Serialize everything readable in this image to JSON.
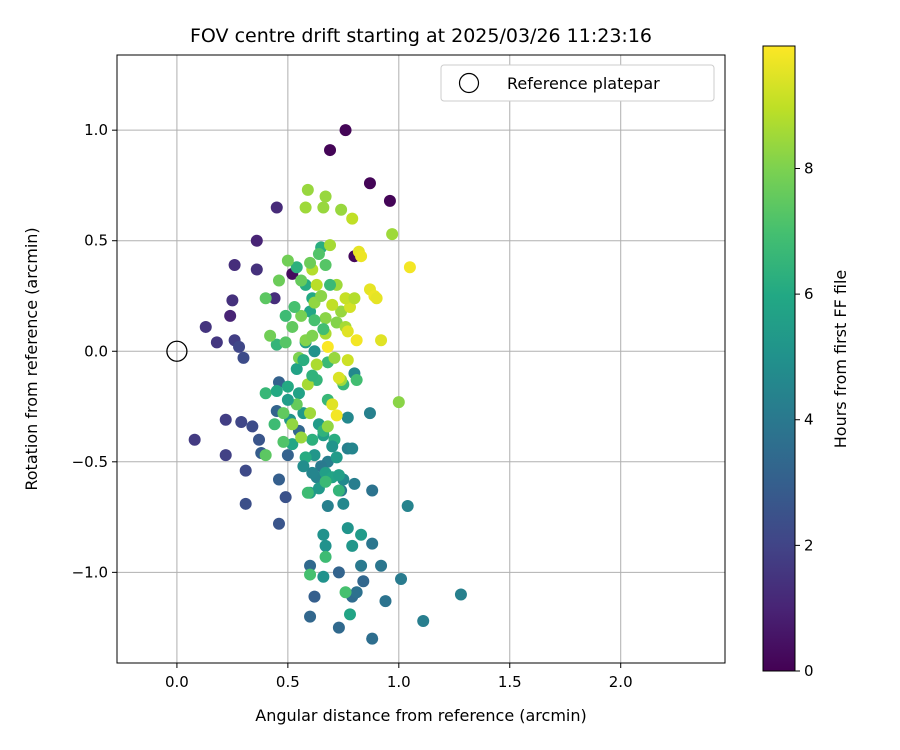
{
  "chart_data": {
    "type": "scatter",
    "title": "FOV centre drift starting at 2025/03/26 11:23:16",
    "xlabel": "Angular distance from reference (arcmin)",
    "ylabel": "Rotation from reference (arcmin)",
    "xlim": [
      -0.27,
      2.47
    ],
    "ylim": [
      -1.41,
      1.34
    ],
    "xticks": [
      0.0,
      0.5,
      1.0,
      1.5,
      2.0
    ],
    "yticks": [
      -1.0,
      -0.5,
      0.0,
      0.5,
      1.0
    ],
    "grid": true,
    "legend": {
      "position": "top-right",
      "entries": [
        "Reference platepar"
      ]
    },
    "reference_point": {
      "x": 0.0,
      "y": 0.0,
      "label": "Reference platepar"
    },
    "colorbar": {
      "label": "Hours from first FF file",
      "colormap": "viridis",
      "range": [
        0,
        9.95
      ],
      "ticks": [
        0,
        2,
        4,
        6,
        8
      ]
    },
    "points": [
      [
        0.76,
        1.0,
        0.1
      ],
      [
        0.69,
        0.91,
        0.1
      ],
      [
        0.87,
        0.76,
        0.1
      ],
      [
        0.96,
        0.68,
        0.1
      ],
      [
        0.8,
        0.43,
        0.2
      ],
      [
        0.52,
        0.35,
        0.3
      ],
      [
        0.36,
        0.5,
        1.0
      ],
      [
        0.45,
        0.65,
        1.2
      ],
      [
        0.26,
        0.39,
        1.3
      ],
      [
        0.36,
        0.37,
        1.4
      ],
      [
        0.44,
        0.24,
        1.3
      ],
      [
        0.25,
        0.23,
        1.4
      ],
      [
        0.24,
        0.16,
        1.0
      ],
      [
        0.13,
        0.11,
        1.5
      ],
      [
        0.18,
        0.04,
        1.6
      ],
      [
        0.26,
        0.05,
        1.8
      ],
      [
        0.28,
        0.02,
        2.1
      ],
      [
        0.3,
        -0.03,
        2.3
      ],
      [
        0.08,
        -0.4,
        1.7
      ],
      [
        0.22,
        -0.31,
        1.8
      ],
      [
        0.22,
        -0.47,
        1.9
      ],
      [
        0.29,
        -0.32,
        2.1
      ],
      [
        0.34,
        -0.34,
        2.3
      ],
      [
        0.31,
        -0.54,
        2.2
      ],
      [
        0.37,
        -0.4,
        2.6
      ],
      [
        0.38,
        -0.46,
        2.9
      ],
      [
        0.31,
        -0.69,
        2.4
      ],
      [
        0.46,
        -0.78,
        2.6
      ],
      [
        0.49,
        -0.66,
        2.5
      ],
      [
        0.46,
        -0.58,
        3.0
      ],
      [
        0.5,
        -0.47,
        3.1
      ],
      [
        0.46,
        -0.14,
        3.1
      ],
      [
        0.45,
        -0.27,
        3.2
      ],
      [
        0.55,
        -0.36,
        3.3
      ],
      [
        0.6,
        -0.97,
        3.4
      ],
      [
        0.62,
        -1.11,
        3.0
      ],
      [
        0.6,
        -1.2,
        3.3
      ],
      [
        0.73,
        -1.0,
        3.2
      ],
      [
        0.79,
        -1.11,
        3.5
      ],
      [
        0.81,
        -1.09,
        3.7
      ],
      [
        0.84,
        -1.04,
        3.3
      ],
      [
        0.73,
        -1.25,
        3.4
      ],
      [
        0.88,
        -1.3,
        3.6
      ],
      [
        0.94,
        -1.13,
        3.8
      ],
      [
        0.92,
        -0.97,
        3.9
      ],
      [
        0.83,
        -0.97,
        4.0
      ],
      [
        0.88,
        -0.87,
        3.9
      ],
      [
        1.01,
        -1.03,
        4.1
      ],
      [
        1.11,
        -1.22,
        4.2
      ],
      [
        1.28,
        -1.1,
        4.3
      ],
      [
        1.04,
        -0.7,
        4.4
      ],
      [
        0.88,
        -0.63,
        3.8
      ],
      [
        0.8,
        -0.6,
        4.2
      ],
      [
        0.87,
        -0.28,
        4.3
      ],
      [
        0.77,
        -0.44,
        4.3
      ],
      [
        0.79,
        -0.44,
        4.5
      ],
      [
        0.77,
        -0.3,
        4.6
      ],
      [
        0.8,
        -0.1,
        4.6
      ],
      [
        0.68,
        -0.5,
        4.2
      ],
      [
        0.65,
        -0.52,
        4.0
      ],
      [
        0.63,
        -0.57,
        4.4
      ],
      [
        0.68,
        -0.7,
        4.3
      ],
      [
        0.74,
        -0.63,
        4.1
      ],
      [
        0.61,
        -0.55,
        4.5
      ],
      [
        0.75,
        -0.58,
        4.7
      ],
      [
        0.67,
        -0.88,
        5.0
      ],
      [
        0.66,
        -0.83,
        5.0
      ],
      [
        0.66,
        -1.02,
        5.0
      ],
      [
        0.77,
        -0.8,
        5.1
      ],
      [
        0.79,
        -0.88,
        5.2
      ],
      [
        0.83,
        -0.83,
        5.4
      ],
      [
        0.78,
        -1.19,
        5.8
      ],
      [
        0.6,
        -0.64,
        5.5
      ],
      [
        0.64,
        -0.62,
        5.3
      ],
      [
        0.67,
        -0.55,
        5.6
      ],
      [
        0.7,
        -0.57,
        5.8
      ],
      [
        0.73,
        -0.56,
        5.6
      ],
      [
        0.72,
        -0.48,
        5.4
      ],
      [
        0.62,
        -0.47,
        5.2
      ],
      [
        0.64,
        -0.33,
        5.4
      ],
      [
        0.66,
        -0.38,
        5.6
      ],
      [
        0.57,
        -0.28,
        5.3
      ],
      [
        0.51,
        -0.31,
        5.1
      ],
      [
        0.55,
        -0.19,
        5.7
      ],
      [
        0.54,
        -0.08,
        5.7
      ],
      [
        0.58,
        0.04,
        5.6
      ],
      [
        0.6,
        0.18,
        5.9
      ],
      [
        0.61,
        0.24,
        6.0
      ],
      [
        0.65,
        0.47,
        6.2
      ],
      [
        0.58,
        0.3,
        6.1
      ],
      [
        0.54,
        0.38,
        6.3
      ],
      [
        0.5,
        -0.16,
        6.0
      ],
      [
        0.52,
        -0.42,
        5.9
      ],
      [
        0.58,
        -0.48,
        6.1
      ],
      [
        0.61,
        -0.4,
        6.3
      ],
      [
        0.66,
        -0.36,
        6.4
      ],
      [
        0.68,
        -0.22,
        6.6
      ],
      [
        0.63,
        -0.13,
        6.5
      ],
      [
        0.68,
        -0.05,
        6.7
      ],
      [
        0.75,
        -0.15,
        6.6
      ],
      [
        0.81,
        -0.13,
        6.9
      ],
      [
        0.73,
        -0.63,
        6.5
      ],
      [
        0.67,
        -0.59,
        6.7
      ],
      [
        0.59,
        -0.64,
        6.8
      ],
      [
        0.67,
        -0.93,
        6.8
      ],
      [
        0.6,
        -1.01,
        7.0
      ],
      [
        0.76,
        -1.09,
        7.0
      ],
      [
        0.45,
        0.03,
        6.5
      ],
      [
        0.44,
        -0.33,
        6.8
      ],
      [
        0.4,
        -0.19,
        6.6
      ],
      [
        0.48,
        -0.41,
        7.2
      ],
      [
        0.4,
        -0.47,
        7.4
      ],
      [
        0.48,
        -0.28,
        7.5
      ],
      [
        0.54,
        -0.24,
        7.6
      ],
      [
        0.49,
        0.04,
        7.3
      ],
      [
        0.52,
        0.11,
        7.5
      ],
      [
        0.4,
        0.24,
        7.4
      ],
      [
        0.46,
        0.32,
        7.7
      ],
      [
        0.42,
        0.07,
        7.8
      ],
      [
        0.56,
        0.16,
        7.9
      ],
      [
        0.55,
        -0.03,
        8.0
      ],
      [
        0.5,
        0.41,
        7.8
      ],
      [
        0.58,
        0.05,
        8.1
      ],
      [
        0.61,
        0.07,
        8.0
      ],
      [
        0.62,
        0.22,
        8.3
      ],
      [
        0.65,
        0.25,
        8.2
      ],
      [
        0.67,
        0.15,
        8.2
      ],
      [
        0.72,
        0.13,
        8.1
      ],
      [
        0.74,
        0.18,
        8.4
      ],
      [
        0.76,
        0.11,
        8.6
      ],
      [
        0.71,
        -0.03,
        8.4
      ],
      [
        0.74,
        -0.13,
        8.5
      ],
      [
        0.68,
        -0.34,
        8.3
      ],
      [
        0.52,
        -0.33,
        8.3
      ],
      [
        0.6,
        -0.28,
        8.5
      ],
      [
        0.56,
        -0.39,
        8.4
      ],
      [
        0.59,
        -0.15,
        8.6
      ],
      [
        0.63,
        -0.06,
        8.7
      ],
      [
        0.67,
        0.08,
        8.7
      ],
      [
        0.72,
        0.3,
        8.5
      ],
      [
        0.69,
        0.48,
        8.6
      ],
      [
        0.74,
        0.64,
        8.4
      ],
      [
        0.79,
        0.6,
        9.0
      ],
      [
        0.97,
        0.53,
        8.5
      ],
      [
        0.59,
        0.73,
        8.4
      ],
      [
        0.58,
        0.65,
        8.5
      ],
      [
        0.67,
        0.7,
        8.4
      ],
      [
        0.66,
        0.65,
        8.4
      ],
      [
        0.61,
        0.37,
        8.8
      ],
      [
        0.63,
        0.3,
        8.9
      ],
      [
        0.7,
        0.21,
        9.0
      ],
      [
        0.78,
        0.2,
        9.3
      ],
      [
        0.82,
        0.45,
        9.6
      ],
      [
        0.83,
        0.43,
        9.7
      ],
      [
        0.87,
        0.28,
        9.6
      ],
      [
        0.89,
        0.25,
        9.7
      ],
      [
        0.9,
        0.24,
        9.6
      ],
      [
        1.05,
        0.38,
        9.8
      ],
      [
        0.92,
        0.05,
        9.5
      ],
      [
        0.81,
        0.05,
        9.8
      ],
      [
        0.77,
        0.09,
        9.5
      ],
      [
        0.77,
        -0.04,
        9.2
      ],
      [
        0.73,
        -0.12,
        9.4
      ],
      [
        0.7,
        -0.24,
        9.5
      ],
      [
        0.72,
        -0.29,
        9.8
      ],
      [
        0.68,
        0.02,
        9.9
      ],
      [
        0.76,
        0.24,
        9.1
      ],
      [
        1.0,
        -0.23,
        8.2
      ],
      [
        0.8,
        0.24,
        8.8
      ],
      [
        0.62,
        0.14,
        7.0
      ],
      [
        0.66,
        0.1,
        6.9
      ],
      [
        0.61,
        -0.11,
        6.4
      ],
      [
        0.57,
        -0.04,
        6.2
      ],
      [
        0.53,
        0.2,
        7.0
      ],
      [
        0.49,
        0.16,
        6.8
      ],
      [
        0.64,
        0.44,
        7.2
      ],
      [
        0.67,
        0.39,
        7.3
      ],
      [
        0.56,
        0.32,
        7.6
      ],
      [
        0.6,
        0.4,
        7.7
      ],
      [
        0.45,
        -0.18,
        6.0
      ],
      [
        0.5,
        -0.22,
        5.5
      ],
      [
        0.62,
        0.0,
        5.0
      ],
      [
        0.69,
        0.3,
        6.7
      ],
      [
        0.71,
        -0.4,
        6.2
      ],
      [
        0.57,
        -0.52,
        4.8
      ],
      [
        0.7,
        -0.43,
        5.1
      ],
      [
        0.75,
        -0.69,
        4.6
      ]
    ]
  }
}
